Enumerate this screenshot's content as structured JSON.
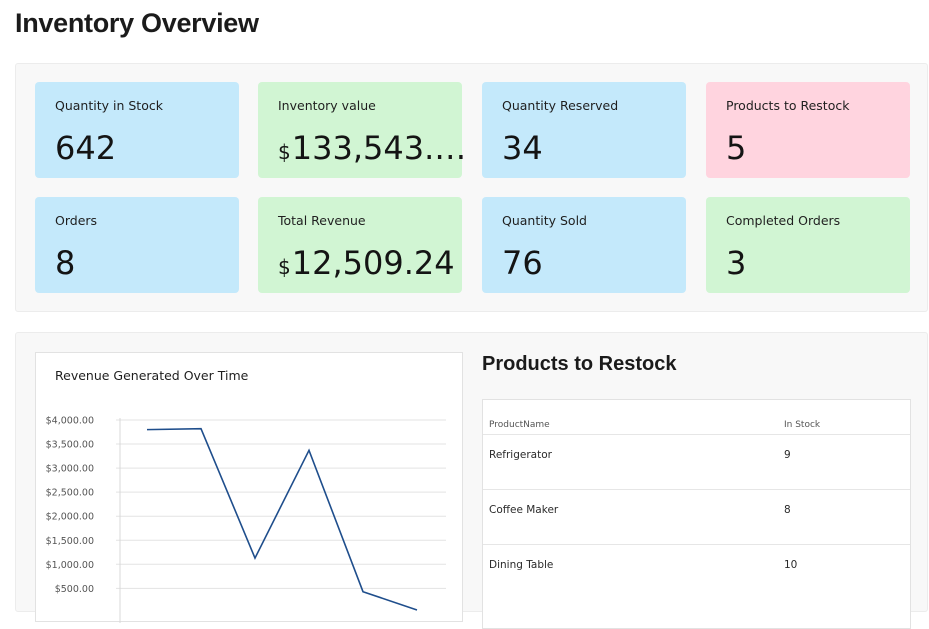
{
  "page": {
    "title": "Inventory Overview"
  },
  "kpis": [
    {
      "label": "Quantity in Stock",
      "currency": "",
      "value": "642",
      "color": "#c4e9fb"
    },
    {
      "label": "Inventory value",
      "currency": "$",
      "value": "133,543.…",
      "color": "#d1f5d3"
    },
    {
      "label": "Quantity Reserved",
      "currency": "",
      "value": "34",
      "color": "#c4e9fb"
    },
    {
      "label": "Products to Restock",
      "currency": "",
      "value": "5",
      "color": "#ffd4df"
    },
    {
      "label": "Orders",
      "currency": "",
      "value": "8",
      "color": "#c4e9fb"
    },
    {
      "label": "Total Revenue",
      "currency": "$",
      "value": "12,509.24",
      "color": "#d1f5d3"
    },
    {
      "label": "Quantity Sold",
      "currency": "",
      "value": "76",
      "color": "#c4e9fb"
    },
    {
      "label": "Completed Orders",
      "currency": "",
      "value": "3",
      "color": "#d1f5d3"
    }
  ],
  "chart_data": {
    "type": "line",
    "title": "Revenue Generated Over Time",
    "xlabel": "",
    "ylabel": "",
    "ylim": [
      0,
      4000
    ],
    "yticks": [
      "$4,000.00",
      "$3,500.00",
      "$3,000.00",
      "$2,500.00",
      "$2,000.00",
      "$1,500.00",
      "$1,000.00",
      "$500.00"
    ],
    "ytick_values": [
      4000,
      3500,
      3000,
      2500,
      2000,
      1500,
      1000,
      500
    ],
    "grid": true,
    "line_color": "#1f4e8c",
    "series": [
      {
        "values": [
          3800,
          3820,
          1130,
          3370,
          430,
          50
        ]
      }
    ]
  },
  "restock": {
    "title": "Products to Restock",
    "columns": [
      "ProductName",
      "In Stock"
    ],
    "rows": [
      {
        "name": "Refrigerator",
        "stock": "9"
      },
      {
        "name": "Coffee Maker",
        "stock": "8"
      },
      {
        "name": "Dining Table",
        "stock": "10"
      }
    ]
  }
}
